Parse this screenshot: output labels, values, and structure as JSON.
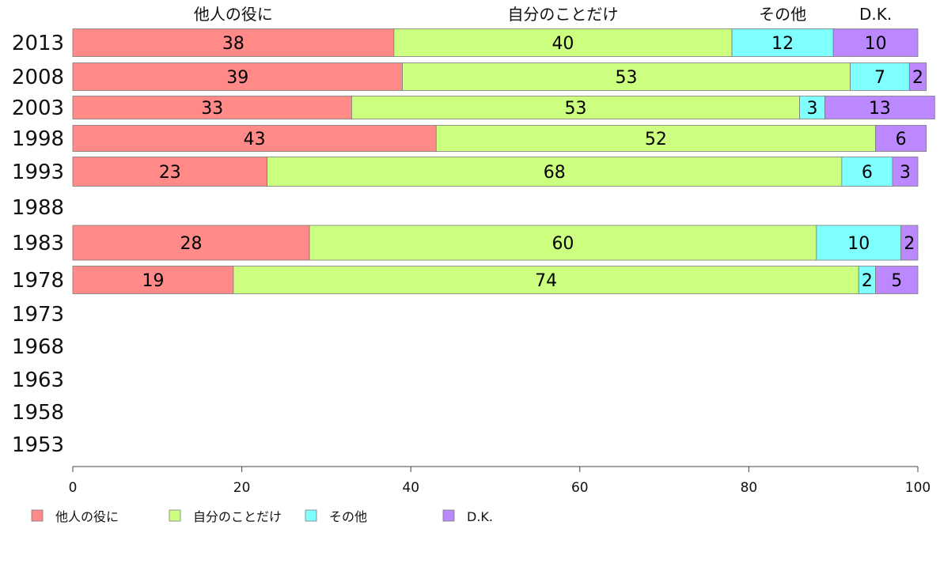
{
  "chart_data": {
    "type": "bar",
    "orientation": "horizontal",
    "stacked": true,
    "categories": [
      "2013",
      "2008",
      "2003",
      "1998",
      "1993",
      "1988",
      "1983",
      "1978",
      "1973",
      "1968",
      "1963",
      "1958",
      "1953"
    ],
    "series": [
      {
        "name": "他人の役に",
        "color": "#ff8a87",
        "values": [
          38,
          39,
          33,
          43,
          23,
          null,
          28,
          19,
          null,
          null,
          null,
          null,
          null
        ]
      },
      {
        "name": "自分のことだけ",
        "color": "#ccff80",
        "values": [
          40,
          53,
          53,
          52,
          68,
          null,
          60,
          74,
          null,
          null,
          null,
          null,
          null
        ]
      },
      {
        "name": "その他",
        "color": "#80ffff",
        "values": [
          12,
          7,
          3,
          0,
          6,
          null,
          10,
          2,
          null,
          null,
          null,
          null,
          null
        ]
      },
      {
        "name": "D.K.",
        "color": "#bb88ff",
        "values": [
          10,
          2,
          13,
          6,
          3,
          null,
          2,
          5,
          null,
          null,
          null,
          null,
          null
        ]
      }
    ],
    "xlim": [
      0,
      100
    ],
    "xticks": [
      "0",
      "20",
      "40",
      "60",
      "80",
      "100"
    ],
    "grid": false,
    "legend": "bottom-left",
    "title": "",
    "xlabel": "",
    "ylabel": ""
  }
}
